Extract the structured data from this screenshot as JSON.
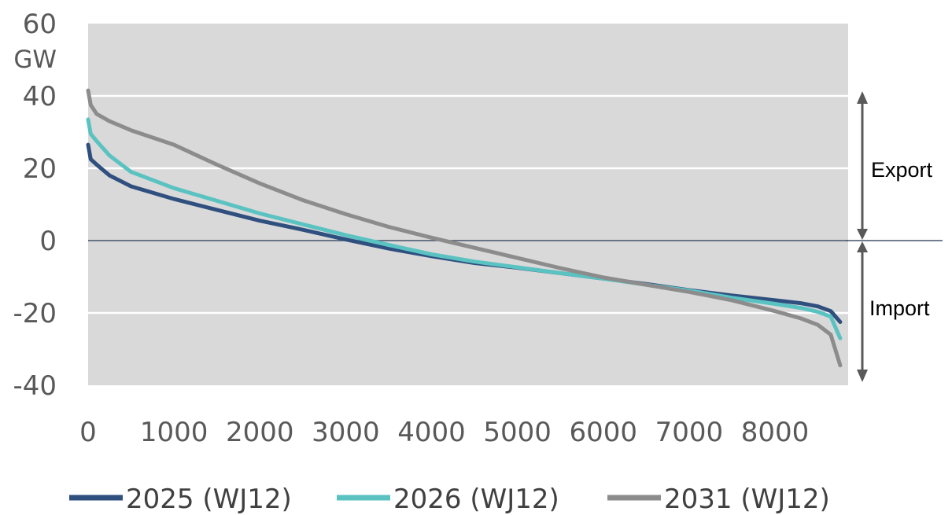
{
  "chart_data": {
    "type": "line",
    "ylabel": "GW",
    "ylim": [
      -40,
      60
    ],
    "xlim": [
      0,
      8760
    ],
    "y_ticks": [
      "-40",
      "-20",
      "0",
      "20",
      "40",
      "60"
    ],
    "x_ticks": [
      "0",
      "1000",
      "2000",
      "3000",
      "4000",
      "5000",
      "6000",
      "7000",
      "8000"
    ],
    "grid": true,
    "legend_position": "bottom",
    "annotations": {
      "export": "Export",
      "import": "Import"
    },
    "colors": {
      "plot_bg": "#d9d9d9",
      "gridline": "#ffffff",
      "zero_line": "#44546a",
      "arrow": "#595959"
    },
    "series": [
      {
        "name": "2025 (WJ12)",
        "color": "#2f4f7f",
        "x": [
          0,
          30,
          100,
          250,
          500,
          1000,
          1500,
          2000,
          2500,
          3000,
          3500,
          4000,
          4500,
          5000,
          5500,
          6000,
          6500,
          7000,
          7500,
          8000,
          8300,
          8500,
          8650,
          8760
        ],
        "y": [
          26.5,
          22.5,
          21,
          18,
          15,
          11.5,
          8.5,
          5.5,
          3,
          0.3,
          -2.2,
          -4.3,
          -6.2,
          -7.5,
          -9,
          -10.5,
          -12,
          -13.7,
          -15.2,
          -16.5,
          -17.3,
          -18.2,
          -19.5,
          -22.5
        ]
      },
      {
        "name": "2026 (WJ12)",
        "color": "#5bc2c2",
        "x": [
          0,
          30,
          100,
          250,
          500,
          1000,
          1500,
          2000,
          2500,
          3000,
          3500,
          4000,
          4500,
          5000,
          5500,
          6000,
          6500,
          7000,
          7500,
          8000,
          8300,
          8500,
          8650,
          8760
        ],
        "y": [
          33.5,
          29.5,
          27.5,
          23.5,
          19,
          14.5,
          11,
          7.5,
          4.5,
          1.5,
          -1.2,
          -3.8,
          -5.8,
          -7.4,
          -9,
          -10.5,
          -12.2,
          -13.8,
          -15.8,
          -17.5,
          -18.6,
          -19.7,
          -21,
          -27
        ]
      },
      {
        "name": "2031 (WJ12)",
        "color": "#8c8c8c",
        "x": [
          0,
          30,
          100,
          250,
          500,
          1000,
          1500,
          2000,
          2500,
          3000,
          3500,
          4000,
          4500,
          5000,
          5500,
          6000,
          6500,
          7000,
          7500,
          8000,
          8300,
          8500,
          8650,
          8760
        ],
        "y": [
          41.5,
          37.5,
          35,
          33,
          30.5,
          26.5,
          21,
          15.8,
          11.2,
          7.3,
          3.8,
          0.8,
          -2,
          -4.8,
          -7.6,
          -10.2,
          -12.2,
          -14.2,
          -16.5,
          -19.5,
          -21.5,
          -23.3,
          -26,
          -34.5
        ]
      }
    ]
  }
}
